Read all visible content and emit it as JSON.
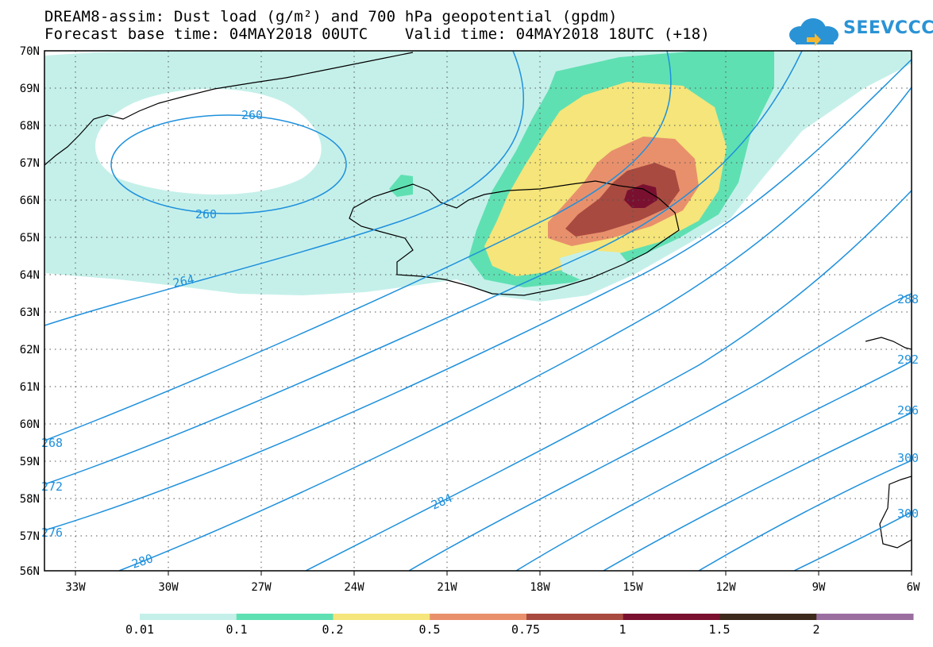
{
  "title": {
    "line1": "DREAM8-assim: Dust load (g/m²) and 700 hPa geopotential (gpdm)",
    "line2": "Forecast base time: 04MAY2018 00UTC    Valid time: 04MAY2018 18UTC (+18)"
  },
  "logo": {
    "text": "SEEVCCC",
    "icon": "cloud-arrow-icon",
    "color": "#2a93d5"
  },
  "axes": {
    "lat_labels": [
      "70N",
      "69N",
      "68N",
      "67N",
      "66N",
      "65N",
      "64N",
      "63N",
      "62N",
      "61N",
      "60N",
      "59N",
      "58N",
      "57N",
      "56N"
    ],
    "lon_labels": [
      "33W",
      "30W",
      "27W",
      "24W",
      "21W",
      "18W",
      "15W",
      "12W",
      "9W",
      "6W"
    ]
  },
  "contour_labels": [
    "260",
    "260",
    "264",
    "268",
    "272",
    "276",
    "280",
    "284",
    "288",
    "292",
    "296",
    "300",
    "300"
  ],
  "colorbar": {
    "levels": [
      "0.01",
      "0.1",
      "0.2",
      "0.5",
      "0.75",
      "1",
      "1.5",
      "2"
    ],
    "colors": [
      "#c5f0ea",
      "#5fe0b2",
      "#f5e57a",
      "#e8906c",
      "#a84a40",
      "#7a1030",
      "#3e2a1a",
      "#9a6fa0"
    ]
  },
  "colors": {
    "contour": "#1e90dc",
    "coast": "#000000",
    "grid": "#555555"
  }
}
